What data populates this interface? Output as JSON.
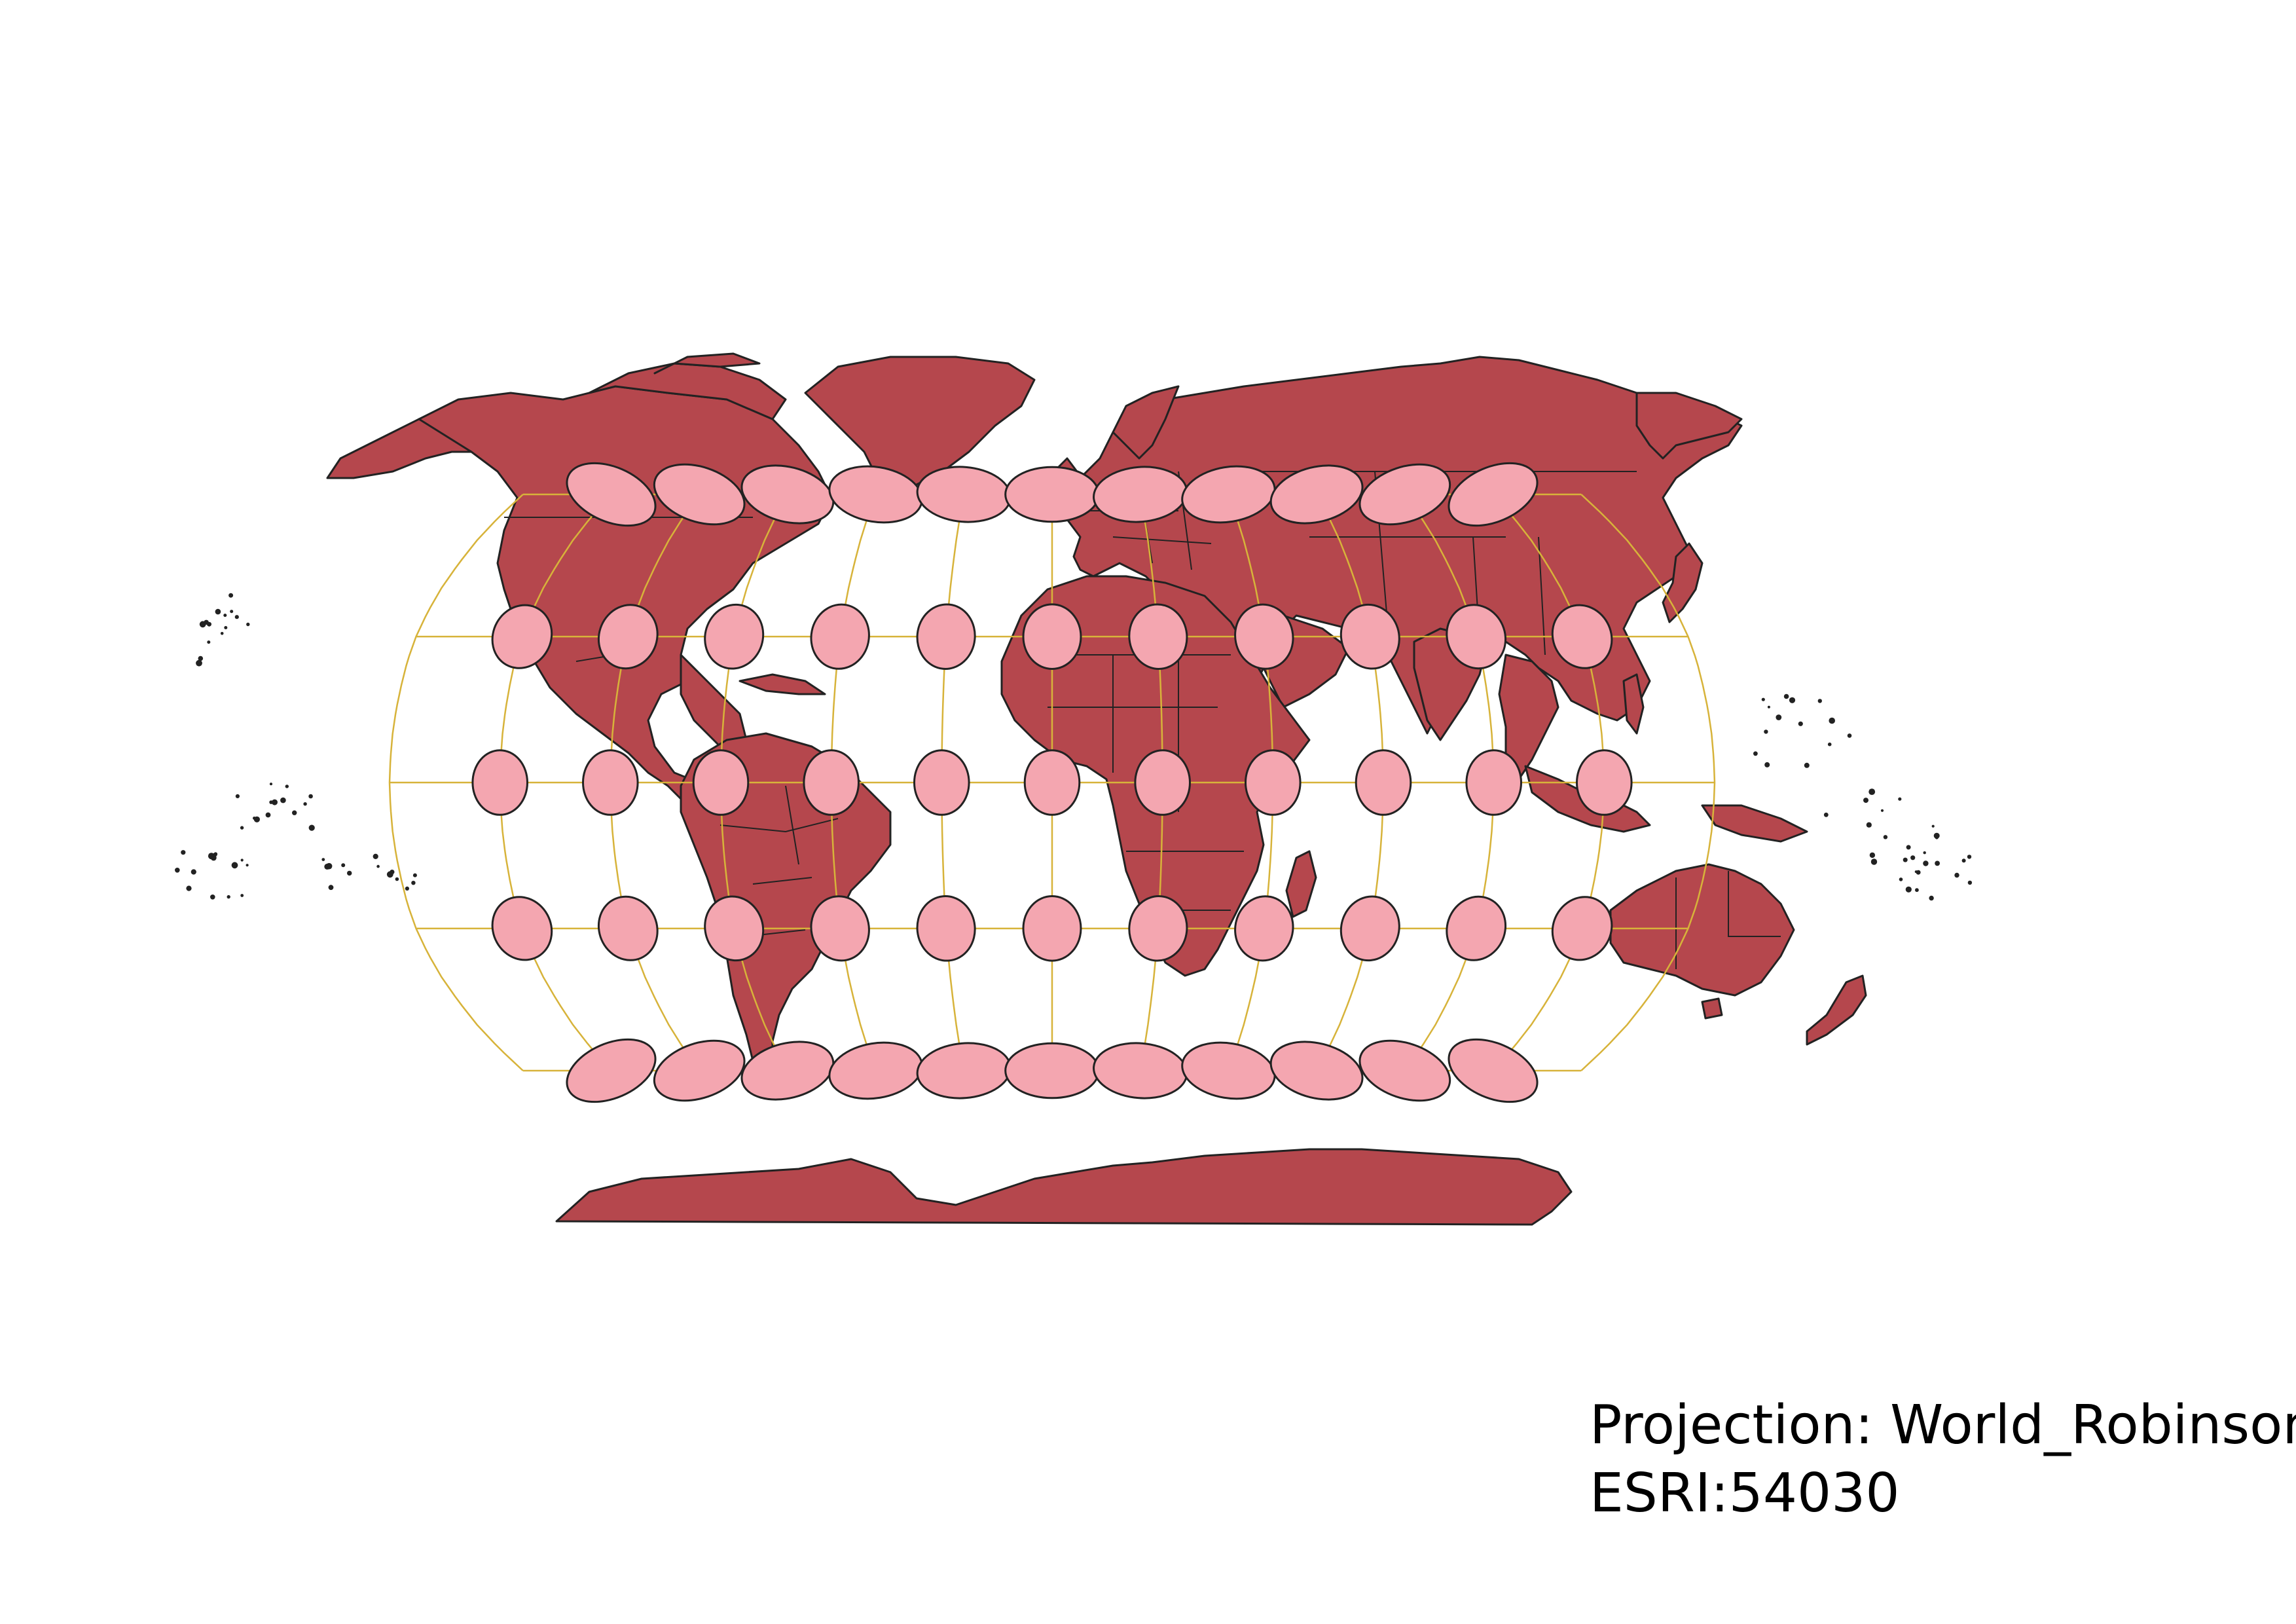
{
  "map": {
    "projection_label": "Projection: World_Robinson",
    "crs_label": "ESRI:54030",
    "colors": {
      "background": "#ffffff",
      "land_fill": "#b5474d",
      "land_outline": "#222222",
      "graticule": "#d7b33a",
      "tissot_fill": "#f4a6b0",
      "tissot_outline": "#222222"
    },
    "graticule": {
      "latitudes_deg": [
        -60,
        -30,
        0,
        30,
        60
      ],
      "longitudes_deg": [
        -150,
        -120,
        -90,
        -60,
        -30,
        0,
        30,
        60,
        90,
        120,
        150
      ]
    },
    "tissot_indicatrices": {
      "latitudes_deg": [
        -60,
        -30,
        0,
        30,
        60
      ],
      "longitudes_deg": [
        -150,
        -120,
        -90,
        -60,
        -30,
        0,
        30,
        60,
        90,
        120,
        150
      ]
    }
  }
}
